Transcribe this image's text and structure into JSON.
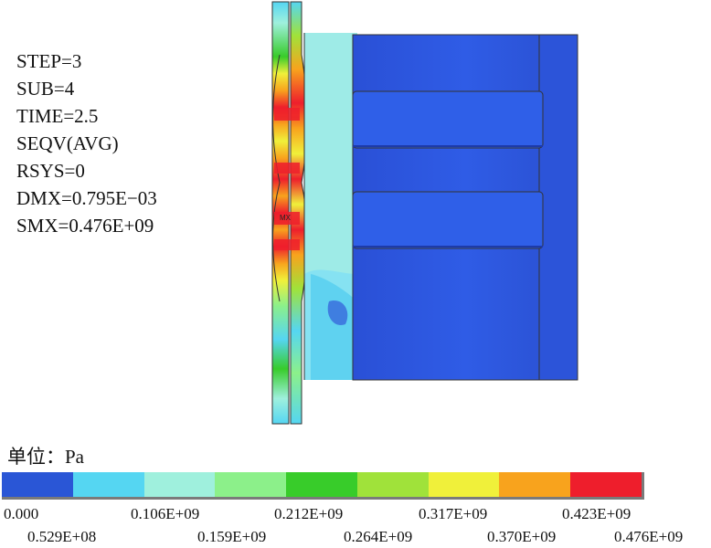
{
  "info": {
    "step": "STEP=3",
    "sub": "SUB=4",
    "time": "TIME=2.5",
    "result": "SEQV(AVG)",
    "rsys": "RSYS=0",
    "dmx": "DMX=0.795E−03",
    "smx": "SMX=0.476E+09",
    "mx_marker": "MX"
  },
  "legend": {
    "unit": "单位：Pa",
    "colors": [
      "#2a56d6",
      "#55d6f2",
      "#9ff0dd",
      "#8cf08a",
      "#38cc2a",
      "#a0e23a",
      "#f0f03a",
      "#f8a31d",
      "#ee1e2c"
    ],
    "labels_top": [
      "0.000",
      "0.106E+09",
      "0.212E+09",
      "0.317E+09",
      "0.423E+09"
    ],
    "labels_bottom": [
      "0.529E+08",
      "0.159E+09",
      "0.264E+09",
      "0.370E+09",
      "0.476E+09"
    ]
  }
}
